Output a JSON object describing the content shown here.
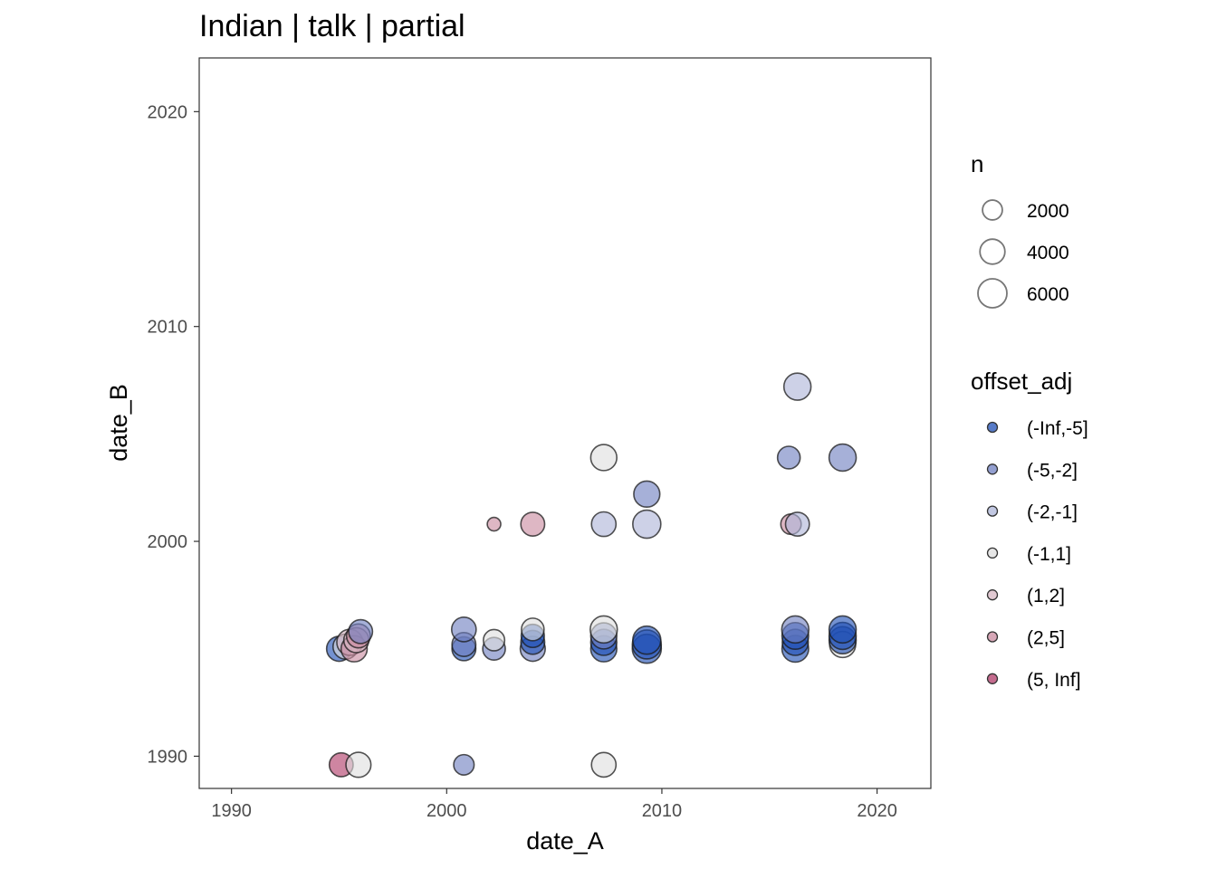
{
  "chart_data": {
    "type": "scatter",
    "title": "Indian | talk | partial",
    "xlabel": "date_A",
    "ylabel": "date_B",
    "xlim": [
      1988.5,
      2022.5
    ],
    "ylim": [
      1988.5,
      2022.5
    ],
    "x_ticks": [
      "1990",
      "2000",
      "2010",
      "2020"
    ],
    "y_ticks": [
      "1990",
      "2000",
      "2010",
      "2020"
    ],
    "grid": false,
    "legend_position": "right",
    "size_legend": {
      "title": "n",
      "entries": [
        {
          "label": "2000",
          "value": 2000
        },
        {
          "label": "4000",
          "value": 4000
        },
        {
          "label": "6000",
          "value": 6000
        }
      ]
    },
    "color_legend": {
      "title": "offset_adj",
      "entries": [
        {
          "label": "(-Inf,-5]",
          "color": "#1f4fb5"
        },
        {
          "label": "(-5,-2]",
          "color": "#6f7fc0"
        },
        {
          "label": "(-2,-1]",
          "color": "#aeb5d8"
        },
        {
          "label": "(-1,1]",
          "color": "#dedede"
        },
        {
          "label": "(1,2]",
          "color": "#d7b7c3"
        },
        {
          "label": "(2,5]",
          "color": "#c98a9f"
        },
        {
          "label": "(5, Inf]",
          "color": "#b03a68"
        }
      ]
    },
    "points": [
      {
        "x": 1995.0,
        "y": 1995.0,
        "n": 4000,
        "cat": "(-Inf,-5]"
      },
      {
        "x": 1995.3,
        "y": 1995.1,
        "n": 4000,
        "cat": "(-1,1]"
      },
      {
        "x": 1995.5,
        "y": 1995.3,
        "n": 4500,
        "cat": "(1,2]"
      },
      {
        "x": 1995.7,
        "y": 1995.0,
        "n": 4500,
        "cat": "(2,5]"
      },
      {
        "x": 1995.8,
        "y": 1995.4,
        "n": 4000,
        "cat": "(1,2]"
      },
      {
        "x": 1995.9,
        "y": 1995.6,
        "n": 3500,
        "cat": "(2,5]"
      },
      {
        "x": 1996.0,
        "y": 1995.8,
        "n": 3500,
        "cat": "(-5,-2]"
      },
      {
        "x": 1995.1,
        "y": 1989.6,
        "n": 3500,
        "cat": "(5, Inf]"
      },
      {
        "x": 1995.9,
        "y": 1989.6,
        "n": 4000,
        "cat": "(-1,1]"
      },
      {
        "x": 2000.8,
        "y": 1995.0,
        "n": 3500,
        "cat": "(-Inf,-5]"
      },
      {
        "x": 2000.8,
        "y": 1995.2,
        "n": 3500,
        "cat": "(-5,-2]"
      },
      {
        "x": 2000.8,
        "y": 1995.9,
        "n": 3800,
        "cat": "(-5,-2]"
      },
      {
        "x": 2002.2,
        "y": 1995.0,
        "n": 3000,
        "cat": "(-5,-2]"
      },
      {
        "x": 2002.2,
        "y": 1995.4,
        "n": 2500,
        "cat": "(-1,1]"
      },
      {
        "x": 2002.2,
        "y": 2000.8,
        "n": 500,
        "cat": "(2,5]"
      },
      {
        "x": 2000.8,
        "y": 1989.6,
        "n": 2200,
        "cat": "(-5,-2]"
      },
      {
        "x": 2004.0,
        "y": 1995.0,
        "n": 4000,
        "cat": "(-5,-2]"
      },
      {
        "x": 2004.0,
        "y": 1995.3,
        "n": 3500,
        "cat": "(-Inf,-5]"
      },
      {
        "x": 2004.0,
        "y": 1995.6,
        "n": 3200,
        "cat": "(-Inf,-5]"
      },
      {
        "x": 2004.0,
        "y": 1995.9,
        "n": 3000,
        "cat": "(-1,1]"
      },
      {
        "x": 2004.0,
        "y": 2000.8,
        "n": 3500,
        "cat": "(2,5]"
      },
      {
        "x": 2007.3,
        "y": 1995.0,
        "n": 4500,
        "cat": "(-Inf,-5]"
      },
      {
        "x": 2007.3,
        "y": 1995.3,
        "n": 4500,
        "cat": "(-Inf,-5]"
      },
      {
        "x": 2007.3,
        "y": 1995.6,
        "n": 4500,
        "cat": "(-5,-2]"
      },
      {
        "x": 2007.3,
        "y": 1995.9,
        "n": 5000,
        "cat": "(-1,1]"
      },
      {
        "x": 2007.3,
        "y": 2000.8,
        "n": 3800,
        "cat": "(-2,-1]"
      },
      {
        "x": 2007.3,
        "y": 2003.9,
        "n": 4500,
        "cat": "(-1,1]"
      },
      {
        "x": 2007.3,
        "y": 1989.6,
        "n": 3800,
        "cat": "(-1,1]"
      },
      {
        "x": 2009.3,
        "y": 1995.0,
        "n": 6000,
        "cat": "(-Inf,-5]"
      },
      {
        "x": 2009.3,
        "y": 1995.2,
        "n": 6000,
        "cat": "(-Inf,-5]"
      },
      {
        "x": 2009.3,
        "y": 1995.4,
        "n": 5500,
        "cat": "(-Inf,-5]"
      },
      {
        "x": 2009.3,
        "y": 2000.8,
        "n": 5500,
        "cat": "(-2,-1]"
      },
      {
        "x": 2009.3,
        "y": 2002.2,
        "n": 4500,
        "cat": "(-5,-2]"
      },
      {
        "x": 2016.2,
        "y": 1995.0,
        "n": 4800,
        "cat": "(-Inf,-5]"
      },
      {
        "x": 2016.2,
        "y": 1995.3,
        "n": 4500,
        "cat": "(-Inf,-5]"
      },
      {
        "x": 2016.2,
        "y": 1995.6,
        "n": 4800,
        "cat": "(-Inf,-5]"
      },
      {
        "x": 2016.2,
        "y": 1995.9,
        "n": 5000,
        "cat": "(-5,-2]"
      },
      {
        "x": 2016.0,
        "y": 2000.8,
        "n": 2200,
        "cat": "(2,5]"
      },
      {
        "x": 2016.3,
        "y": 2000.8,
        "n": 3500,
        "cat": "(-2,-1]"
      },
      {
        "x": 2015.9,
        "y": 2003.9,
        "n": 3000,
        "cat": "(-5,-2]"
      },
      {
        "x": 2016.3,
        "y": 2007.2,
        "n": 5000,
        "cat": "(-2,-1]"
      },
      {
        "x": 2018.4,
        "y": 1995.2,
        "n": 4500,
        "cat": "(-1,1]"
      },
      {
        "x": 2018.4,
        "y": 1995.4,
        "n": 5000,
        "cat": "(-Inf,-5]"
      },
      {
        "x": 2018.4,
        "y": 1995.6,
        "n": 5000,
        "cat": "(-Inf,-5]"
      },
      {
        "x": 2018.4,
        "y": 1995.9,
        "n": 5000,
        "cat": "(-Inf,-5]"
      },
      {
        "x": 2018.4,
        "y": 2003.9,
        "n": 5000,
        "cat": "(-5,-2]"
      }
    ]
  }
}
